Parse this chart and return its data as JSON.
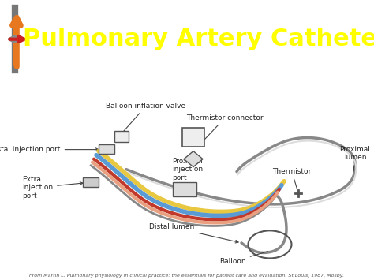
{
  "title": "Pulmonary Artery Catheter",
  "title_color": "#FFFF00",
  "title_fontsize": 22,
  "header_bg_color": "#2B3A52",
  "body_bg_color": "#FFFFFF",
  "figure_bg_color": "#FFFFFF",
  "citation": "From Martin L. Pulmonary physiology in clinical practice: the essentials for patient care and evaluation. St.Louis, 1987, Mosby.",
  "labels": {
    "balloon_inflation_valve": "Balloon inflation valve",
    "thermistor_connector": "Thermistor connector",
    "distal_injection_port": "Distal injection port",
    "extra_injection_port": "Extra\ninjection\nport",
    "proximal_injection_port": "Proximal\ninjection\nport",
    "thermistor": "Thermistor",
    "distal_lumen": "Distal lumen",
    "balloon": "Balloon",
    "proximal_lumen": "Proximal\nlumen"
  },
  "colors": {
    "yellow_tube": "#E8C840",
    "blue_tube": "#5B9BD5",
    "red_tube": "#C0392B",
    "salmon_tube": "#E8A080",
    "gray_tube": "#888888",
    "white_tube": "#DDDDDD",
    "outline": "#555555"
  },
  "arrows": {
    "orange_up": "#E87820",
    "gray_left": "#888888",
    "red_right": "#CC2222"
  }
}
